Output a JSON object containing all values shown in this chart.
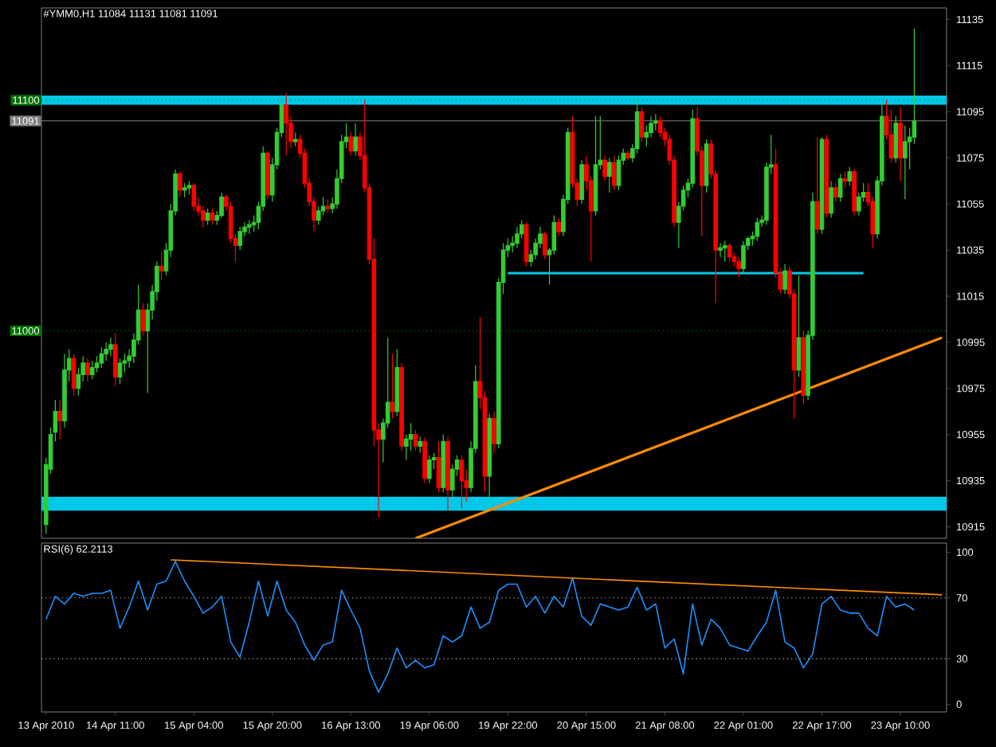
{
  "chart_data": [
    {
      "type": "candlestick",
      "title": "#YMM0,H1 11084 11131 11081 11091",
      "ylim": [
        10910,
        11140
      ],
      "yticks": [
        10915,
        10935,
        10955,
        10975,
        10995,
        11015,
        11035,
        11055,
        11075,
        11095,
        11115,
        11135
      ],
      "tick_labels": "y",
      "categories": [
        null,
        null,
        null,
        null,
        null,
        null,
        null,
        null,
        null,
        null,
        null,
        null,
        null,
        null,
        null,
        null,
        null,
        null,
        null,
        null,
        null,
        null,
        null,
        null,
        null,
        null,
        null,
        null,
        null,
        null,
        null,
        null,
        null,
        null,
        null,
        null,
        null,
        null,
        null,
        null,
        null,
        null,
        null,
        null,
        null,
        null,
        null,
        null,
        null,
        null,
        null,
        null,
        null,
        null,
        null,
        null,
        null,
        null,
        null,
        null,
        null,
        null,
        null,
        null,
        null,
        null,
        null,
        null,
        null,
        null,
        null,
        null,
        null,
        null,
        null,
        null,
        null,
        null,
        null,
        null,
        null,
        null,
        null,
        null,
        null,
        null,
        null,
        null,
        null,
        null,
        null,
        null,
        null,
        null,
        null,
        null,
        null,
        null,
        null,
        null,
        null,
        null,
        null,
        null,
        null,
        null,
        null,
        null,
        null,
        null,
        null,
        null,
        null,
        null,
        null,
        null,
        null,
        null,
        null,
        null,
        null,
        null,
        null,
        null,
        null,
        null,
        null,
        null,
        null,
        null,
        null,
        null,
        null,
        null,
        null,
        null,
        null,
        null,
        null,
        null,
        null,
        null,
        null,
        null,
        null,
        null,
        null,
        null,
        null,
        null,
        null,
        null,
        null,
        null,
        null,
        null,
        null,
        null,
        null,
        null,
        null,
        null,
        null,
        null,
        null,
        null,
        null,
        null,
        null,
        null,
        null,
        null,
        null,
        null,
        null,
        null,
        null,
        null,
        null,
        null,
        null,
        null,
        null,
        null,
        null,
        null,
        null,
        null,
        null,
        null,
        null,
        null,
        null,
        null,
        null
      ],
      "ohlc": [
        [
          10916,
          10945,
          10912,
          10942
        ],
        [
          10940,
          10958,
          10938,
          10955
        ],
        [
          10956,
          10970,
          10952,
          10965
        ],
        [
          10965,
          10970,
          10953,
          10961
        ],
        [
          10961,
          10990,
          10958,
          10983
        ],
        [
          10983,
          10992,
          10978,
          10988
        ],
        [
          10988,
          10990,
          10972,
          10975
        ],
        [
          10975,
          10984,
          10972,
          10981
        ],
        [
          10981,
          10989,
          10978,
          10986
        ],
        [
          10986,
          10988,
          10978,
          10981
        ],
        [
          10981,
          10987,
          10979,
          10984
        ],
        [
          10984,
          10989,
          10982,
          10986
        ],
        [
          10986,
          10993,
          10984,
          10990
        ],
        [
          10990,
          10995,
          10987,
          10992
        ],
        [
          10992,
          10997,
          10989,
          10994
        ],
        [
          10994,
          10999,
          10976,
          10980
        ],
        [
          10980,
          10988,
          10977,
          10986
        ],
        [
          10986,
          10990,
          10982,
          10987
        ],
        [
          10987,
          10992,
          10984,
          10989
        ],
        [
          10989,
          10999,
          10986,
          10996
        ],
        [
          10996,
          11020,
          10994,
          11009
        ],
        [
          11009,
          11012,
          10998,
          11000
        ],
        [
          11000,
          11012,
          10973,
          11009
        ],
        [
          11009,
          11020,
          11005,
          11017
        ],
        [
          11017,
          11030,
          11013,
          11028
        ],
        [
          11028,
          11034,
          11022,
          11026
        ],
        [
          11026,
          11038,
          11024,
          11035
        ],
        [
          11035,
          11055,
          11032,
          11052
        ],
        [
          11052,
          11070,
          11050,
          11068
        ],
        [
          11068,
          11069,
          11058,
          11061
        ],
        [
          11061,
          11064,
          11058,
          11062
        ],
        [
          11062,
          11065,
          11059,
          11063
        ],
        [
          11063,
          11064,
          11052,
          11054
        ],
        [
          11054,
          11058,
          11050,
          11052
        ],
        [
          11052,
          11054,
          11045,
          11048
        ],
        [
          11048,
          11053,
          11046,
          11051
        ],
        [
          11051,
          11053,
          11046,
          11048
        ],
        [
          11048,
          11052,
          11046,
          11050
        ],
        [
          11050,
          11060,
          11049,
          11058
        ],
        [
          11058,
          11059,
          11052,
          11054
        ],
        [
          11054,
          11056,
          11038,
          11040
        ],
        [
          11040,
          11042,
          11030,
          11037
        ],
        [
          11037,
          11045,
          11035,
          11043
        ],
        [
          11043,
          11047,
          11041,
          11045
        ],
        [
          11045,
          11048,
          11042,
          11046
        ],
        [
          11046,
          11050,
          11043,
          11047
        ],
        [
          11047,
          11056,
          11044,
          11054
        ],
        [
          11054,
          11080,
          11052,
          11077
        ],
        [
          11077,
          11078,
          11057,
          11059
        ],
        [
          11059,
          11075,
          11056,
          11072
        ],
        [
          11072,
          11088,
          11070,
          11086
        ],
        [
          11086,
          11102,
          11084,
          11098
        ],
        [
          11098,
          11103,
          11076,
          11090
        ],
        [
          11090,
          11093,
          11079,
          11082
        ],
        [
          11082,
          11086,
          11080,
          11083
        ],
        [
          11083,
          11085,
          11075,
          11077
        ],
        [
          11077,
          11079,
          11062,
          11064
        ],
        [
          11064,
          11066,
          11054,
          11056
        ],
        [
          11056,
          11058,
          11043,
          11048
        ],
        [
          11048,
          11054,
          11046,
          11052
        ],
        [
          11052,
          11058,
          11050,
          11054
        ],
        [
          11054,
          11057,
          11051,
          11053
        ],
        [
          11053,
          11058,
          11051,
          11055
        ],
        [
          11055,
          11070,
          11053,
          11066
        ],
        [
          11066,
          11085,
          11064,
          11082
        ],
        [
          11082,
          11090,
          11079,
          11084
        ],
        [
          11084,
          11086,
          11076,
          11078
        ],
        [
          11078,
          11090,
          11076,
          11084
        ],
        [
          11084,
          11086,
          11074,
          11076
        ],
        [
          11076,
          11100,
          11060,
          11062
        ],
        [
          11062,
          11064,
          11029,
          11031
        ],
        [
          11031,
          11040,
          10950,
          10957
        ],
        [
          10957,
          10960,
          10919,
          10953
        ],
        [
          10953,
          10962,
          10943,
          10960
        ],
        [
          10960,
          10997,
          10958,
          10969
        ],
        [
          10969,
          10990,
          10962,
          10965
        ],
        [
          10965,
          10992,
          10963,
          10984
        ],
        [
          10984,
          10986,
          10948,
          10950
        ],
        [
          10950,
          10955,
          10944,
          10953
        ],
        [
          10953,
          10960,
          10948,
          10955
        ],
        [
          10955,
          10957,
          10948,
          10950
        ],
        [
          10950,
          10954,
          10947,
          10952
        ],
        [
          10952,
          10954,
          10934,
          10936
        ],
        [
          10936,
          10946,
          10934,
          10944
        ],
        [
          10944,
          10947,
          10940,
          10945
        ],
        [
          10945,
          10952,
          10930,
          10932
        ],
        [
          10932,
          10955,
          10930,
          10952
        ],
        [
          10952,
          10954,
          10922,
          10931
        ],
        [
          10931,
          10942,
          10928,
          10940
        ],
        [
          10940,
          10946,
          10937,
          10944
        ],
        [
          10944,
          10946,
          10923,
          10935
        ],
        [
          10935,
          10940,
          10926,
          10932
        ],
        [
          10932,
          10952,
          10930,
          10949
        ],
        [
          10949,
          10985,
          10947,
          10978
        ],
        [
          10978,
          11006,
          10966,
          10971
        ],
        [
          10971,
          10974,
          10930,
          10937
        ],
        [
          10937,
          10964,
          10924,
          10962
        ],
        [
          10962,
          10965,
          10947,
          10951
        ],
        [
          10951,
          11023,
          10949,
          11021
        ],
        [
          11021,
          11038,
          11016,
          11035
        ],
        [
          11035,
          11040,
          11032,
          11037
        ],
        [
          11037,
          11041,
          11034,
          11038
        ],
        [
          11038,
          11045,
          11036,
          11042
        ],
        [
          11042,
          11048,
          11040,
          11046
        ],
        [
          11046,
          11047,
          11028,
          11030
        ],
        [
          11030,
          11035,
          11028,
          11033
        ],
        [
          11033,
          11040,
          11031,
          11038
        ],
        [
          11038,
          11045,
          11036,
          11042
        ],
        [
          11042,
          11043,
          11031,
          11033
        ],
        [
          11033,
          11036,
          11020,
          11035
        ],
        [
          11035,
          11050,
          11033,
          11047
        ],
        [
          11047,
          11049,
          11041,
          11043
        ],
        [
          11043,
          11059,
          11041,
          11057
        ],
        [
          11057,
          11088,
          11055,
          11086
        ],
        [
          11086,
          11093,
          11062,
          11064
        ],
        [
          11064,
          11066,
          11054,
          11057
        ],
        [
          11057,
          11074,
          11055,
          11072
        ],
        [
          11072,
          11076,
          11061,
          11065
        ],
        [
          11065,
          11067,
          11030,
          11052
        ],
        [
          11052,
          11093,
          11050,
          11072
        ],
        [
          11072,
          11093,
          11070,
          11074
        ],
        [
          11074,
          11076,
          11065,
          11067
        ],
        [
          11067,
          11075,
          11060,
          11073
        ],
        [
          11073,
          11076,
          11061,
          11063
        ],
        [
          11063,
          11076,
          11061,
          11074
        ],
        [
          11074,
          11079,
          11072,
          11077
        ],
        [
          11077,
          11078,
          11074,
          11075
        ],
        [
          11075,
          11081,
          11073,
          11079
        ],
        [
          11079,
          11100,
          11077,
          11095
        ],
        [
          11095,
          11097,
          11082,
          11084
        ],
        [
          11084,
          11089,
          11080,
          11086
        ],
        [
          11086,
          11093,
          11084,
          11090
        ],
        [
          11090,
          11094,
          11087,
          11091
        ],
        [
          11091,
          11093,
          11084,
          11086
        ],
        [
          11086,
          11088,
          11080,
          11083
        ],
        [
          11083,
          11085,
          11072,
          11074
        ],
        [
          11074,
          11076,
          11045,
          11047
        ],
        [
          11047,
          11056,
          11036,
          11054
        ],
        [
          11054,
          11063,
          11052,
          11061
        ],
        [
          11061,
          11066,
          11058,
          11064
        ],
        [
          11064,
          11096,
          11062,
          11092
        ],
        [
          11092,
          11097,
          11076,
          11078
        ],
        [
          11078,
          11080,
          11041,
          11063
        ],
        [
          11063,
          11083,
          11060,
          11081
        ],
        [
          11081,
          11083,
          11066,
          11068
        ],
        [
          11068,
          11070,
          11012,
          11035
        ],
        [
          11035,
          11038,
          11032,
          11036
        ],
        [
          11036,
          11039,
          11030,
          11037
        ],
        [
          11037,
          11038,
          11030,
          11032
        ],
        [
          11032,
          11034,
          11028,
          11030
        ],
        [
          11030,
          11032,
          11023,
          11027
        ],
        [
          11027,
          11039,
          11025,
          11037
        ],
        [
          11037,
          11041,
          11035,
          11040
        ],
        [
          11040,
          11043,
          11037,
          11041
        ],
        [
          11041,
          11049,
          11039,
          11047
        ],
        [
          11047,
          11050,
          11045,
          11048
        ],
        [
          11048,
          11073,
          11046,
          11071
        ],
        [
          11071,
          11085,
          11068,
          11072
        ],
        [
          11072,
          11079,
          11023,
          11025
        ],
        [
          11025,
          11027,
          11016,
          11018
        ],
        [
          11018,
          11029,
          11016,
          11026
        ],
        [
          11026,
          11028,
          11014,
          11016
        ],
        [
          11016,
          11018,
          10962,
          10983
        ],
        [
          10983,
          11024,
          10980,
          10997
        ],
        [
          10997,
          11000,
          10968,
          10972
        ],
        [
          10972,
          11000,
          10970,
          10998
        ],
        [
          10998,
          11060,
          10996,
          11056
        ],
        [
          11056,
          11084,
          11042,
          11044
        ],
        [
          11044,
          11084,
          11042,
          11083
        ],
        [
          11083,
          11085,
          11049,
          11051
        ],
        [
          11051,
          11065,
          11049,
          11062
        ],
        [
          11062,
          11064,
          11056,
          11058
        ],
        [
          11058,
          11068,
          11056,
          11066
        ],
        [
          11066,
          11069,
          11062,
          11065
        ],
        [
          11065,
          11071,
          11063,
          11069
        ],
        [
          11069,
          11070,
          11050,
          11052
        ],
        [
          11052,
          11060,
          11050,
          11058
        ],
        [
          11058,
          11064,
          11056,
          11060
        ],
        [
          11060,
          11064,
          11054,
          11056
        ],
        [
          11056,
          11058,
          11036,
          11042
        ],
        [
          11042,
          11067,
          11040,
          11065
        ],
        [
          11065,
          11099,
          11063,
          11093
        ],
        [
          11093,
          11100,
          11083,
          11085
        ],
        [
          11085,
          11096,
          11073,
          11075
        ],
        [
          11075,
          11093,
          11073,
          11090
        ],
        [
          11090,
          11097,
          11065,
          11075
        ],
        [
          11075,
          11089,
          11057,
          11082
        ],
        [
          11082,
          11088,
          11070,
          11084
        ],
        [
          11084,
          11131,
          11081,
          11091
        ],
        null,
        null,
        null,
        null,
        null,
        null
      ],
      "series": [
        {
          "type": "line",
          "color": "#00c8e8",
          "values": [
            null,
            null,
            null,
            null,
            null,
            null,
            null,
            null,
            null,
            null,
            null,
            null,
            null,
            null,
            null,
            null,
            null,
            null,
            null,
            null,
            null,
            null,
            null,
            null,
            null,
            null,
            null,
            null,
            null,
            null,
            null,
            null,
            null,
            null,
            null,
            null,
            null,
            null,
            null,
            null,
            null,
            null,
            null,
            null,
            null,
            null,
            null,
            null,
            null,
            null,
            null,
            null,
            null,
            null,
            null,
            null,
            null,
            null,
            null,
            null,
            null,
            null,
            null,
            null,
            null,
            null,
            null,
            null,
            null,
            null,
            null,
            null,
            null,
            null,
            null,
            null,
            null,
            null,
            null,
            null,
            null,
            null,
            null,
            null,
            null,
            null,
            null,
            null,
            null,
            null,
            null,
            null,
            null,
            null,
            null,
            null,
            null,
            null,
            null,
            null,
            11025,
            null,
            null,
            null,
            null,
            null,
            null,
            null,
            null,
            null,
            null,
            null,
            null,
            null,
            null,
            null,
            null,
            null,
            null,
            null,
            null,
            null,
            null,
            null,
            null,
            null,
            null,
            null,
            null,
            null,
            null,
            null,
            null,
            null,
            null,
            null,
            null,
            null,
            null,
            null,
            null,
            null,
            null,
            null,
            null,
            null,
            null,
            null,
            null,
            null,
            null,
            null,
            null,
            null,
            null,
            null,
            null,
            null,
            null,
            null,
            null,
            null,
            null,
            null,
            null,
            null,
            null,
            null,
            null,
            null,
            null,
            null,
            null,
            null,
            null,
            null,
            null,
            11025,
            null,
            null,
            null,
            null,
            null,
            null,
            null,
            null,
            null,
            null,
            null,
            null,
            null,
            null,
            null,
            null,
            null
          ]
        },
        {
          "type": "line",
          "color": "#ff8c00",
          "values": [
            null,
            null,
            null,
            null,
            null,
            null,
            null,
            null,
            null,
            null,
            null,
            null,
            null,
            null,
            null,
            null,
            null,
            null,
            null,
            null,
            null,
            null,
            null,
            null,
            null,
            null,
            null,
            null,
            null,
            null,
            null,
            null,
            null,
            null,
            null,
            null,
            null,
            null,
            null,
            null,
            null,
            null,
            null,
            null,
            null,
            null,
            null,
            null,
            null,
            null,
            null,
            null,
            null,
            null,
            null,
            null,
            null,
            null,
            null,
            null,
            null,
            null,
            null,
            null,
            null,
            null,
            null,
            null,
            null,
            null,
            null,
            null,
            null,
            null,
            null,
            null,
            null,
            null,
            null,
            null,
            10910,
            null,
            null,
            null,
            null,
            null,
            null,
            null,
            null,
            null,
            null,
            null,
            null,
            null,
            null,
            null,
            null,
            null,
            null,
            null,
            null,
            null,
            null,
            null,
            null,
            null,
            null,
            null,
            null,
            null,
            null,
            null,
            null,
            null,
            null,
            null,
            null,
            null,
            null,
            null,
            null,
            null,
            null,
            null,
            null,
            null,
            null,
            null,
            null,
            null,
            null,
            null,
            null,
            null,
            null,
            null,
            null,
            null,
            null,
            null,
            null,
            null,
            null,
            null,
            null,
            null,
            null,
            null,
            null,
            null,
            null,
            null,
            null,
            null,
            null,
            null,
            null,
            null,
            null,
            null,
            null,
            null,
            null,
            null,
            null,
            null,
            null,
            null,
            null,
            null,
            null,
            null,
            null,
            null,
            null,
            null,
            null,
            null,
            null,
            null,
            null,
            null,
            null,
            null,
            null,
            null,
            null,
            null,
            null,
            null,
            null,
            null,
            null,
            null,
            10997
          ]
        }
      ],
      "bands": [
        {
          "axis": "y",
          "from": 11098,
          "to": 11102,
          "color": "#00c8e8"
        },
        {
          "axis": "y",
          "from": 10922,
          "to": 10928,
          "color": "#00c8e8"
        }
      ],
      "ref_lines": [
        {
          "axis": "y",
          "value": 11100,
          "label": "11100",
          "color": "#007000",
          "line_style": "dotted"
        },
        {
          "axis": "y",
          "value": 11091,
          "label": "11091",
          "color": "#808080",
          "line_style": "solid"
        },
        {
          "axis": "y",
          "value": 11000,
          "label": "11000",
          "color": "#007000",
          "line_style": "dotted"
        }
      ]
    },
    {
      "type": "line",
      "title": "RSI(6) 62.2113",
      "ylim": [
        -5,
        106
      ],
      "yticks": [
        0,
        30,
        70,
        100
      ],
      "categories": [
        "13 Apr 2010",
        null,
        null,
        null,
        null,
        null,
        null,
        null,
        null,
        null,
        null,
        null,
        null,
        null,
        null,
        "14 Apr 11:00",
        null,
        null,
        null,
        null,
        null,
        null,
        null,
        null,
        null,
        null,
        null,
        null,
        null,
        null,
        null,
        null,
        "15 Apr 04:00",
        null,
        null,
        null,
        null,
        null,
        null,
        null,
        null,
        null,
        null,
        null,
        null,
        null,
        null,
        null,
        null,
        "15 Apr 20:00",
        null,
        null,
        null,
        null,
        null,
        null,
        null,
        null,
        null,
        null,
        null,
        null,
        null,
        null,
        null,
        null,
        "16 Apr 13:00",
        null,
        null,
        null,
        null,
        null,
        null,
        null,
        null,
        null,
        null,
        null,
        null,
        null,
        null,
        null,
        null,
        "19 Apr 06:00",
        null,
        null,
        null,
        null,
        null,
        null,
        null,
        null,
        null,
        null,
        null,
        null,
        null,
        null,
        null,
        null,
        "19 Apr 22:00",
        null,
        null,
        null,
        null,
        null,
        null,
        null,
        null,
        null,
        null,
        null,
        null,
        null,
        null,
        null,
        null,
        "20 Apr 15:00",
        null,
        null,
        null,
        null,
        null,
        null,
        null,
        null,
        null,
        null,
        null,
        null,
        null,
        null,
        null,
        null,
        "21 Apr 08:00",
        null,
        null,
        null,
        null,
        null,
        null,
        null,
        null,
        null,
        null,
        null,
        null,
        null,
        null,
        null,
        null,
        "22 Apr 01:00",
        null,
        null,
        null,
        null,
        null,
        null,
        null,
        null,
        null,
        null,
        null,
        null,
        null,
        null,
        null,
        null,
        "22 Apr 17:00",
        null,
        null,
        null,
        null,
        null,
        null,
        null,
        null,
        null,
        null,
        null,
        null,
        null,
        null,
        null,
        null,
        "23 Apr 10:00",
        null,
        null,
        null,
        null,
        null,
        null,
        null,
        null,
        null
      ],
      "series": [
        {
          "color": "#1e90ff",
          "values": [
            56,
            null,
            71,
            null,
            66,
            null,
            73,
            null,
            71,
            null,
            73,
            null,
            73,
            null,
            75,
            null,
            50,
            null,
            64,
            null,
            81,
            null,
            62,
            null,
            79,
            null,
            81,
            null,
            94,
            null,
            81,
            null,
            71,
            null,
            60,
            null,
            64,
            null,
            71,
            null,
            41,
            null,
            31,
            null,
            54,
            null,
            81,
            null,
            58,
            null,
            81,
            null,
            62,
            null,
            54,
            null,
            39,
            null,
            29,
            null,
            39,
            null,
            41,
            null,
            75,
            null,
            62,
            null,
            50,
            null,
            22,
            null,
            8,
            null,
            20,
            null,
            37,
            null,
            24,
            null,
            29,
            null,
            24,
            null,
            26,
            null,
            45,
            null,
            41,
            null,
            45,
            null,
            64,
            null,
            50,
            null,
            54,
            null,
            75,
            null,
            79,
            null,
            79,
            null,
            64,
            null,
            71,
            null,
            60,
            null,
            71,
            null,
            64,
            null,
            83,
            null,
            58,
            null,
            52,
            null,
            66,
            null,
            64,
            null,
            62,
            null,
            64,
            null,
            77,
            null,
            62,
            null,
            66,
            null,
            37,
            null,
            43,
            null,
            20,
            null,
            66,
            null,
            39,
            null,
            56,
            null,
            50,
            null,
            39,
            null,
            37,
            null,
            35,
            null,
            45,
            null,
            54,
            null,
            75,
            null,
            41,
            null,
            37,
            null,
            24,
            null,
            33,
            null,
            66,
            null,
            71,
            null,
            62,
            null,
            60,
            null,
            60,
            null,
            50,
            null,
            45,
            null,
            71,
            null,
            64,
            null,
            66,
            null,
            62,
            null,
            null,
            null,
            null,
            null,
            null
          ]
        },
        {
          "color": "#ff8c00",
          "values": [
            null,
            null,
            null,
            null,
            null,
            null,
            null,
            null,
            null,
            null,
            null,
            null,
            null,
            null,
            null,
            null,
            null,
            null,
            null,
            null,
            null,
            null,
            null,
            null,
            null,
            null,
            null,
            95,
            null,
            null,
            null,
            null,
            null,
            null,
            null,
            null,
            null,
            null,
            null,
            null,
            null,
            null,
            null,
            null,
            null,
            null,
            null,
            null,
            null,
            null,
            null,
            null,
            null,
            null,
            null,
            null,
            null,
            null,
            null,
            null,
            null,
            null,
            null,
            null,
            null,
            null,
            null,
            null,
            null,
            null,
            null,
            null,
            null,
            null,
            null,
            null,
            null,
            null,
            null,
            null,
            null,
            null,
            null,
            null,
            null,
            null,
            null,
            null,
            null,
            null,
            null,
            null,
            null,
            null,
            null,
            null,
            null,
            null,
            null,
            null,
            null,
            null,
            null,
            null,
            null,
            null,
            null,
            null,
            null,
            null,
            null,
            null,
            null,
            null,
            null,
            null,
            null,
            null,
            null,
            null,
            null,
            null,
            null,
            null,
            null,
            null,
            null,
            null,
            null,
            null,
            null,
            null,
            null,
            null,
            null,
            null,
            null,
            null,
            null,
            null,
            null,
            null,
            null,
            null,
            null,
            null,
            null,
            null,
            null,
            null,
            null,
            null,
            null,
            null,
            null,
            null,
            null,
            null,
            null,
            null,
            null,
            null,
            null,
            null,
            null,
            null,
            null,
            null,
            null,
            null,
            null,
            null,
            null,
            null,
            null,
            null,
            null,
            null,
            null,
            null,
            null,
            null,
            null,
            null,
            null,
            null,
            null,
            null,
            null,
            null,
            null,
            null,
            null,
            null,
            72
          ]
        }
      ],
      "ref_lines": [
        {
          "axis": "y",
          "value": 30,
          "color": "#c0c0c0",
          "line_style": "dotted"
        },
        {
          "axis": "y",
          "value": 70,
          "color": "#c0c0c0",
          "line_style": "dotted"
        }
      ]
    }
  ]
}
